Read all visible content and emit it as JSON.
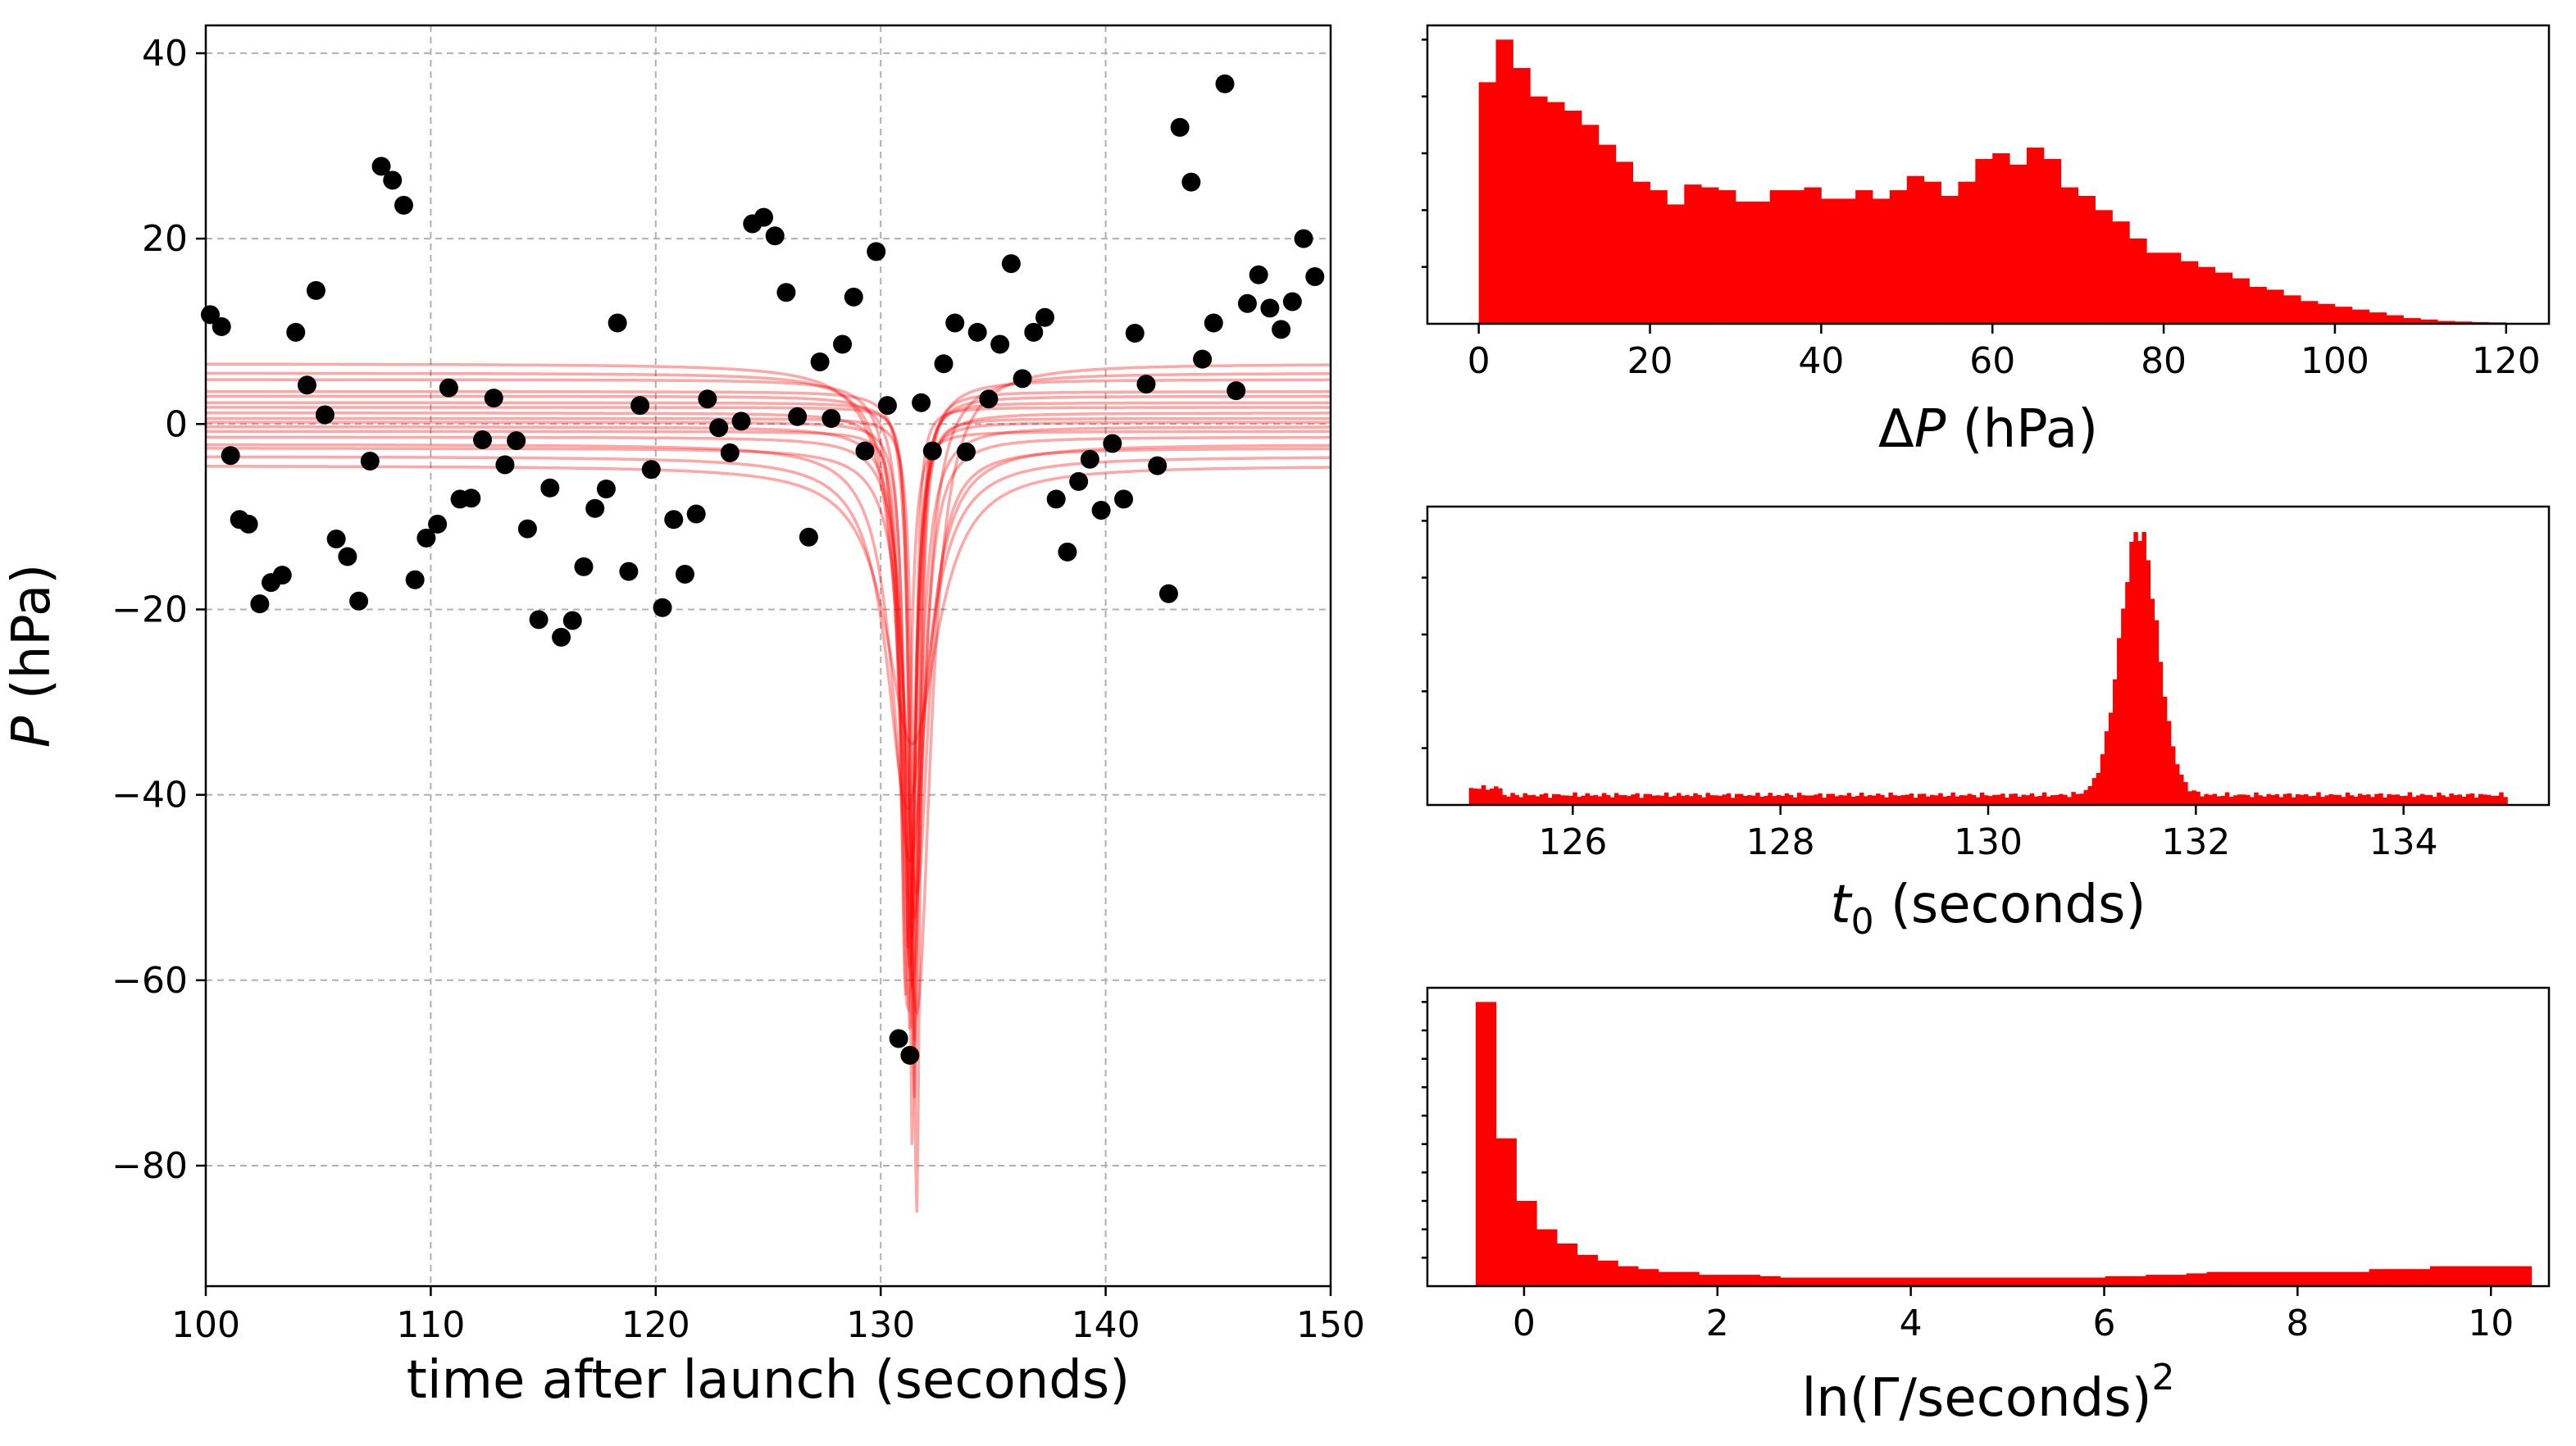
{
  "colors": {
    "scatter": "#000000",
    "fit_curve": "#ff0000",
    "histogram": "#ff0000",
    "grid": "#b0b0b0"
  },
  "chart_data": [
    {
      "id": "main",
      "type": "scatter",
      "title": "",
      "xlabel": "time after launch (seconds)",
      "ylabel_symbol": "P",
      "ylabel_unit": " (hPa)",
      "xlim": [
        100,
        150
      ],
      "ylim": [
        -93,
        43
      ],
      "xticks": [
        100,
        110,
        120,
        130,
        140,
        150
      ],
      "xtick_labels": [
        "100",
        "110",
        "120",
        "130",
        "140",
        "150"
      ],
      "yticks": [
        40,
        20,
        0,
        -20,
        -40,
        -60,
        -80
      ],
      "ytick_labels": [
        "40",
        "20",
        "0",
        "−20",
        "−40",
        "−60",
        "−80"
      ],
      "grid": true,
      "points": [
        [
          100.2,
          11.8
        ],
        [
          100.7,
          10.5
        ],
        [
          101.1,
          -3.4
        ],
        [
          101.5,
          -10.3
        ],
        [
          101.9,
          -10.8
        ],
        [
          102.4,
          -19.4
        ],
        [
          102.9,
          -17.1
        ],
        [
          103.4,
          -16.3
        ],
        [
          104.0,
          9.9
        ],
        [
          104.5,
          4.2
        ],
        [
          104.9,
          14.4
        ],
        [
          105.3,
          1.0
        ],
        [
          105.8,
          -12.4
        ],
        [
          106.3,
          -14.3
        ],
        [
          106.8,
          -19.1
        ],
        [
          107.3,
          -4.0
        ],
        [
          107.8,
          27.8
        ],
        [
          108.3,
          26.3
        ],
        [
          108.8,
          23.6
        ],
        [
          109.3,
          -16.8
        ],
        [
          109.8,
          -12.3
        ],
        [
          110.3,
          -10.8
        ],
        [
          110.8,
          3.9
        ],
        [
          111.3,
          -8.1
        ],
        [
          111.8,
          -8.0
        ],
        [
          112.3,
          -1.7
        ],
        [
          112.8,
          2.8
        ],
        [
          113.3,
          -4.4
        ],
        [
          113.8,
          -1.8
        ],
        [
          114.3,
          -11.3
        ],
        [
          114.8,
          -21.1
        ],
        [
          115.3,
          -6.9
        ],
        [
          115.8,
          -23.0
        ],
        [
          116.3,
          -21.2
        ],
        [
          116.8,
          -15.4
        ],
        [
          117.3,
          -9.1
        ],
        [
          117.8,
          -7.0
        ],
        [
          118.3,
          10.9
        ],
        [
          118.8,
          -15.9
        ],
        [
          119.3,
          2.0
        ],
        [
          119.8,
          -4.9
        ],
        [
          120.3,
          -19.8
        ],
        [
          120.8,
          -10.3
        ],
        [
          121.3,
          -16.2
        ],
        [
          121.8,
          -9.7
        ],
        [
          122.3,
          2.7
        ],
        [
          122.8,
          -0.4
        ],
        [
          123.3,
          -3.1
        ],
        [
          123.8,
          0.3
        ],
        [
          124.3,
          21.6
        ],
        [
          124.8,
          22.3
        ],
        [
          125.3,
          20.3
        ],
        [
          125.8,
          14.2
        ],
        [
          126.3,
          0.8
        ],
        [
          126.8,
          -12.2
        ],
        [
          127.3,
          6.7
        ],
        [
          127.8,
          0.6
        ],
        [
          128.3,
          8.6
        ],
        [
          128.8,
          13.7
        ],
        [
          129.3,
          -2.9
        ],
        [
          129.8,
          18.6
        ],
        [
          130.3,
          2.0
        ],
        [
          130.8,
          -66.3
        ],
        [
          131.3,
          -68.1
        ],
        [
          131.8,
          2.3
        ],
        [
          132.3,
          -2.9
        ],
        [
          132.8,
          6.5
        ],
        [
          133.3,
          10.9
        ],
        [
          133.8,
          -3.0
        ],
        [
          134.3,
          9.9
        ],
        [
          134.8,
          2.7
        ],
        [
          135.3,
          8.6
        ],
        [
          135.8,
          17.3
        ],
        [
          136.3,
          4.9
        ],
        [
          136.8,
          9.9
        ],
        [
          137.3,
          11.5
        ],
        [
          137.8,
          -8.1
        ],
        [
          138.3,
          -13.8
        ],
        [
          138.8,
          -6.2
        ],
        [
          139.3,
          -3.8
        ],
        [
          139.8,
          -9.3
        ],
        [
          140.3,
          -2.1
        ],
        [
          140.8,
          -8.1
        ],
        [
          141.3,
          9.8
        ],
        [
          141.8,
          4.3
        ],
        [
          142.3,
          -4.5
        ],
        [
          142.8,
          -18.3
        ],
        [
          143.3,
          32.0
        ],
        [
          143.8,
          26.1
        ],
        [
          144.3,
          7.0
        ],
        [
          144.8,
          10.9
        ],
        [
          145.3,
          36.7
        ],
        [
          145.8,
          3.6
        ],
        [
          146.3,
          13.0
        ],
        [
          146.8,
          16.1
        ],
        [
          147.3,
          12.5
        ],
        [
          147.8,
          10.2
        ],
        [
          148.3,
          13.2
        ],
        [
          148.8,
          20.0
        ],
        [
          149.3,
          15.9
        ]
      ],
      "fit_curves": [
        {
          "offset": 6.5,
          "t0": 131.6,
          "gamma": 1.5,
          "depth": 70
        },
        {
          "offset": 5.5,
          "t0": 131.4,
          "gamma": 1.2,
          "depth": 66
        },
        {
          "offset": 4.8,
          "t0": 131.2,
          "gamma": 0.8,
          "depth": 68
        },
        {
          "offset": 3.5,
          "t0": 131.5,
          "gamma": 0.5,
          "depth": 70
        },
        {
          "offset": 3.0,
          "t0": 131.3,
          "gamma": 0.6,
          "depth": 62
        },
        {
          "offset": 2.3,
          "t0": 131.5,
          "gamma": 0.4,
          "depth": 75
        },
        {
          "offset": 1.8,
          "t0": 131.4,
          "gamma": 0.3,
          "depth": 80
        },
        {
          "offset": 1.2,
          "t0": 131.2,
          "gamma": 0.7,
          "depth": 58
        },
        {
          "offset": 0.6,
          "t0": 131.6,
          "gamma": 0.35,
          "depth": 86
        },
        {
          "offset": 0.2,
          "t0": 131.3,
          "gamma": 0.5,
          "depth": 66
        },
        {
          "offset": -0.3,
          "t0": 131.4,
          "gamma": 0.9,
          "depth": 55
        },
        {
          "offset": -0.8,
          "t0": 131.1,
          "gamma": 0.45,
          "depth": 61
        },
        {
          "offset": -1.4,
          "t0": 131.5,
          "gamma": 1.0,
          "depth": 52
        },
        {
          "offset": -2.2,
          "t0": 131.3,
          "gamma": 1.8,
          "depth": 45
        },
        {
          "offset": -2.6,
          "t0": 131.6,
          "gamma": 1.3,
          "depth": 48
        },
        {
          "offset": -3.5,
          "t0": 131.2,
          "gamma": 2.2,
          "depth": 38
        },
        {
          "offset": -4.5,
          "t0": 131.4,
          "gamma": 2.8,
          "depth": 30
        }
      ]
    },
    {
      "id": "hist_dp",
      "type": "bar",
      "title": "",
      "xlabel_prefix": "Δ",
      "xlabel_symbol": "P",
      "xlabel_unit": " (hPa)",
      "xlim": [
        -6,
        125
      ],
      "ylim": [
        0,
        1.05
      ],
      "xticks": [
        0,
        20,
        40,
        60,
        80,
        100,
        120
      ],
      "xtick_labels": [
        "0",
        "20",
        "40",
        "60",
        "80",
        "100",
        "120"
      ],
      "ytick_values": [
        0.2,
        0.4,
        0.6,
        0.8,
        1.0
      ],
      "bin_start": 0,
      "bin_width": 2,
      "values": [
        0.85,
        1.0,
        0.9,
        0.8,
        0.78,
        0.75,
        0.7,
        0.63,
        0.57,
        0.5,
        0.47,
        0.42,
        0.49,
        0.48,
        0.47,
        0.43,
        0.43,
        0.47,
        0.47,
        0.48,
        0.44,
        0.44,
        0.47,
        0.44,
        0.47,
        0.52,
        0.5,
        0.45,
        0.5,
        0.58,
        0.6,
        0.56,
        0.62,
        0.58,
        0.48,
        0.45,
        0.4,
        0.36,
        0.3,
        0.25,
        0.25,
        0.22,
        0.2,
        0.18,
        0.16,
        0.13,
        0.12,
        0.1,
        0.08,
        0.07,
        0.06,
        0.05,
        0.04,
        0.03,
        0.02,
        0.015,
        0.01,
        0.008,
        0.006,
        0.005
      ]
    },
    {
      "id": "hist_t0",
      "type": "bar",
      "title": "",
      "xlabel_symbol": "t",
      "xlabel_subscript": "0",
      "xlabel_unit": " (seconds)",
      "xlim": [
        124.6,
        135.4
      ],
      "ylim": [
        0,
        1.05
      ],
      "xticks": [
        126,
        128,
        130,
        132,
        134
      ],
      "xtick_labels": [
        "126",
        "128",
        "130",
        "132",
        "134"
      ],
      "ytick_values": [
        0.2,
        0.4,
        0.6,
        0.8,
        1.0
      ],
      "range": [
        125,
        135
      ],
      "bins": 250,
      "baseline": 0.035,
      "peak_center": 131.45,
      "peak_sigma": 0.18,
      "peak_height": 1.0
    },
    {
      "id": "hist_gamma",
      "type": "bar",
      "title": "",
      "xlabel": "ln(Γ/seconds)",
      "xlabel_superscript": "2",
      "xlim": [
        -1,
        10.6
      ],
      "ylim": [
        0,
        1.05
      ],
      "xticks": [
        0,
        2,
        4,
        6,
        8,
        10
      ],
      "xtick_labels": [
        "0",
        "2",
        "4",
        "6",
        "8",
        "10"
      ],
      "ytick_values": [
        0.1,
        0.2,
        0.3,
        0.4,
        0.5,
        0.6,
        0.7,
        0.8,
        0.9,
        1.0
      ],
      "bin_start": -0.5,
      "bin_width": 0.21,
      "values": [
        1.0,
        0.52,
        0.3,
        0.2,
        0.15,
        0.11,
        0.09,
        0.07,
        0.06,
        0.05,
        0.05,
        0.04,
        0.04,
        0.04,
        0.035,
        0.03,
        0.03,
        0.03,
        0.03,
        0.03,
        0.03,
        0.03,
        0.03,
        0.03,
        0.03,
        0.03,
        0.03,
        0.03,
        0.03,
        0.03,
        0.03,
        0.035,
        0.035,
        0.04,
        0.04,
        0.045,
        0.05,
        0.05,
        0.05,
        0.05,
        0.05,
        0.05,
        0.05,
        0.05,
        0.06,
        0.06,
        0.06,
        0.07,
        0.07,
        0.07,
        0.07,
        0.07
      ]
    }
  ]
}
